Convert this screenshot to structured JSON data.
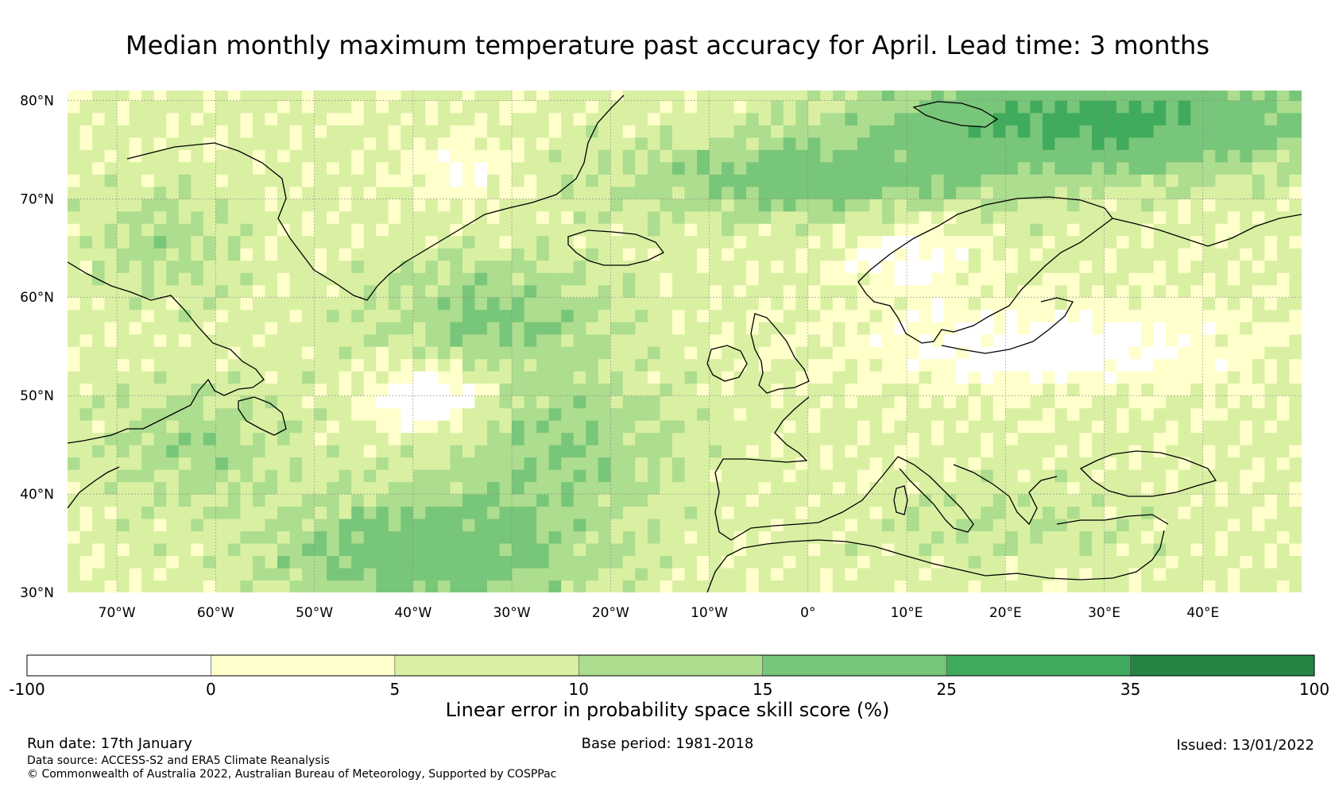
{
  "title": "Median monthly maximum temperature past accuracy for April. Lead time: 3 months",
  "map": {
    "lon_range": [
      -75,
      50
    ],
    "lat_range": [
      30,
      81
    ],
    "lat_ticks": [
      {
        "value": 80,
        "label": "80°N"
      },
      {
        "value": 70,
        "label": "70°N"
      },
      {
        "value": 60,
        "label": "60°N"
      },
      {
        "value": 50,
        "label": "50°N"
      },
      {
        "value": 40,
        "label": "40°N"
      },
      {
        "value": 30,
        "label": "30°N"
      }
    ],
    "lon_ticks": [
      {
        "value": -70,
        "label": "70°W"
      },
      {
        "value": -60,
        "label": "60°W"
      },
      {
        "value": -50,
        "label": "50°W"
      },
      {
        "value": -40,
        "label": "40°W"
      },
      {
        "value": -30,
        "label": "30°W"
      },
      {
        "value": -20,
        "label": "20°W"
      },
      {
        "value": -10,
        "label": "10°W"
      },
      {
        "value": 0,
        "label": "0°"
      },
      {
        "value": 10,
        "label": "10°E"
      },
      {
        "value": 20,
        "label": "20°E"
      },
      {
        "value": 30,
        "label": "30°E"
      },
      {
        "value": 40,
        "label": "40°E"
      }
    ]
  },
  "colorbar": {
    "label": "Linear error in probability space skill score (%)",
    "bins": [
      {
        "from": -100,
        "to": 0,
        "color": "#ffffff"
      },
      {
        "from": 0,
        "to": 5,
        "color": "#ffffcc"
      },
      {
        "from": 5,
        "to": 10,
        "color": "#d9f0a3"
      },
      {
        "from": 10,
        "to": 15,
        "color": "#addd8e"
      },
      {
        "from": 15,
        "to": 25,
        "color": "#78c679"
      },
      {
        "from": 25,
        "to": 35,
        "color": "#41ab5d"
      },
      {
        "from": 35,
        "to": 100,
        "color": "#238443"
      }
    ],
    "tick_labels": [
      "-100",
      "0",
      "5",
      "10",
      "15",
      "25",
      "35",
      "100"
    ]
  },
  "footer": {
    "run_date": "Run date: 17th January",
    "base_period": "Base period: 1981-2018",
    "issued": "Issued: 13/01/2022",
    "data_source": "Data source: ACCESS-S2 and ERA5 Climate Reanalysis",
    "copyright": "© Commonwealth of Australia 2022, Australian Bureau of Meteorology, Supported by COSPPac"
  }
}
